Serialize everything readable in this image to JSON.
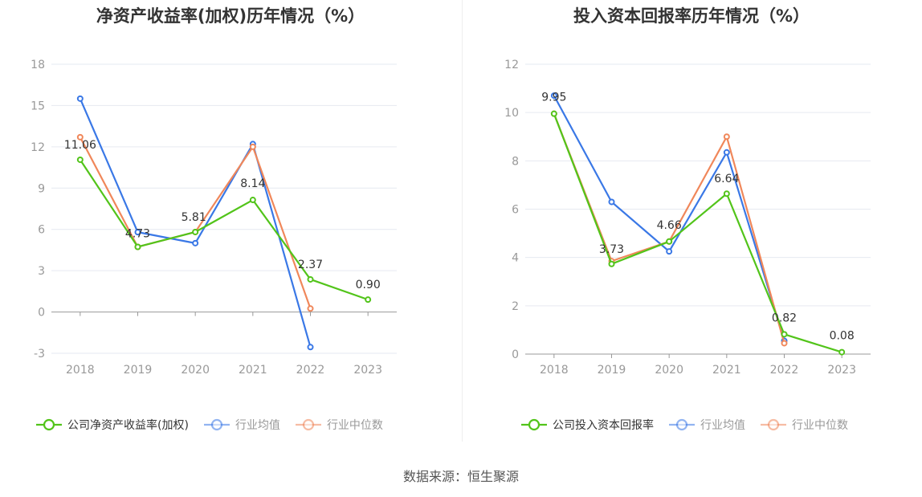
{
  "colors": {
    "company": "#52c41a",
    "avg": "#3a78e6",
    "median": "#f0875a",
    "grid": "#e6e9f0",
    "axis": "#999999",
    "text": "#999999",
    "label": "#333333"
  },
  "source": "数据来源：恒生聚源",
  "chart_data": [
    {
      "type": "line",
      "title": "净资产收益率(加权)历年情况（%）",
      "categories": [
        "2018",
        "2019",
        "2020",
        "2021",
        "2022",
        "2023"
      ],
      "ylim": [
        -3,
        18
      ],
      "yticks": [
        -3,
        0,
        3,
        6,
        9,
        12,
        15,
        18
      ],
      "grid": true,
      "legend_position": "bottom",
      "series": [
        {
          "name": "公司净资产收益率(加权)",
          "role": "company",
          "values": [
            11.06,
            4.73,
            5.81,
            8.14,
            2.37,
            0.9
          ],
          "labels": [
            "11.06",
            "4.73",
            "5.81",
            "8.14",
            "2.37",
            "0.90"
          ]
        },
        {
          "name": "行业均值",
          "role": "avg",
          "values": [
            15.5,
            5.8,
            5.0,
            12.2,
            -2.55,
            null
          ]
        },
        {
          "name": "行业中位数",
          "role": "median",
          "values": [
            12.7,
            4.73,
            5.81,
            12.0,
            0.25,
            null
          ]
        }
      ]
    },
    {
      "type": "line",
      "title": "投入资本回报率历年情况（%）",
      "categories": [
        "2018",
        "2019",
        "2020",
        "2021",
        "2022",
        "2023"
      ],
      "ylim": [
        0,
        12
      ],
      "yticks": [
        0,
        2,
        4,
        6,
        8,
        10,
        12
      ],
      "grid": true,
      "legend_position": "bottom",
      "series": [
        {
          "name": "公司投入资本回报率",
          "role": "company",
          "values": [
            9.95,
            3.73,
            4.66,
            6.64,
            0.82,
            0.08
          ],
          "labels": [
            "9.95",
            "3.73",
            "4.66",
            "6.64",
            "0.82",
            "0.08"
          ]
        },
        {
          "name": "行业均值",
          "role": "avg",
          "values": [
            10.7,
            6.3,
            4.25,
            8.35,
            0.55,
            null
          ]
        },
        {
          "name": "行业中位数",
          "role": "median",
          "values": [
            9.95,
            3.85,
            4.66,
            9.0,
            0.45,
            null
          ]
        }
      ]
    }
  ]
}
